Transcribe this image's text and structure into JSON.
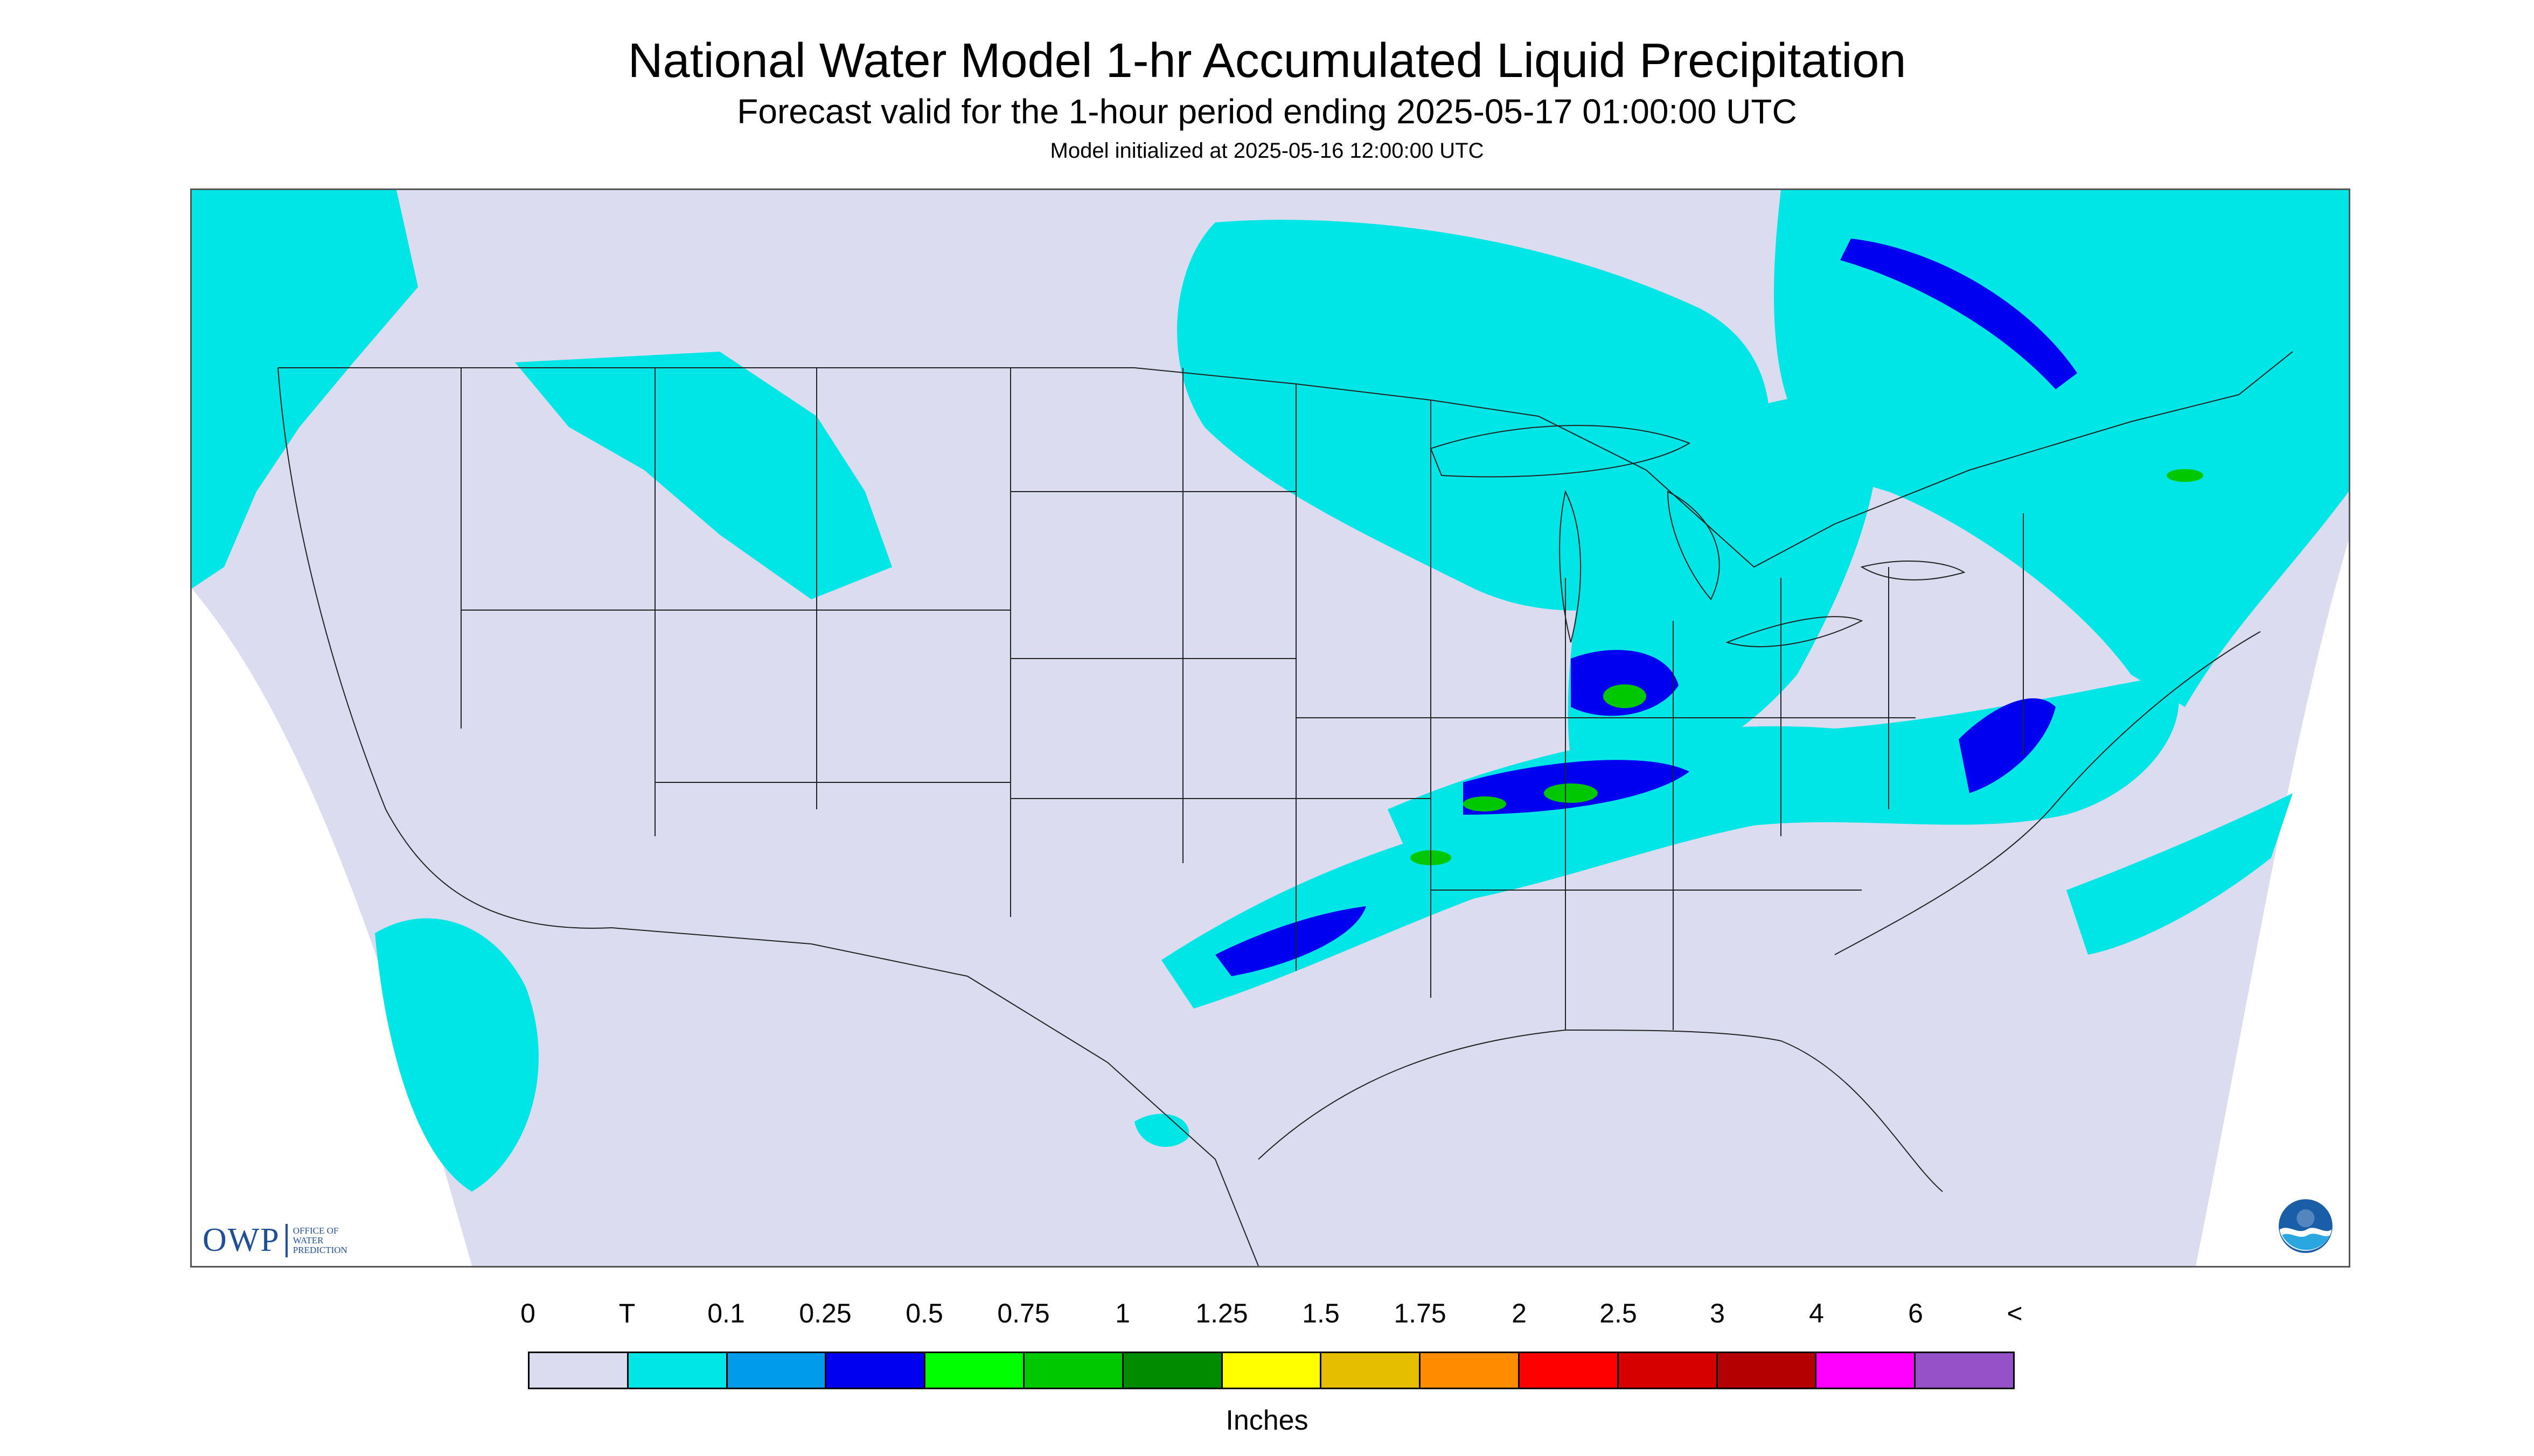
{
  "header": {
    "title": "National Water Model 1-hr Accumulated Liquid Precipitation",
    "subtitle": "Forecast valid for the 1-hour period ending 2025-05-17 01:00:00 UTC",
    "init_line": "Model initialized at 2025-05-16 12:00:00 UTC"
  },
  "map": {
    "no_data_color": "#ffffff",
    "background_color": "#dcdcf0",
    "boundary_color": "#222222",
    "precip_regions": [
      {
        "area": "Pacific Northwest coast",
        "category": "T"
      },
      {
        "area": "Northern Rockies / Montana",
        "category": "T"
      },
      {
        "area": "Upper Midwest / Great Lakes",
        "category": "T"
      },
      {
        "area": "Ontario / Quebec band",
        "category": "0.25"
      },
      {
        "area": "Michigan / Ohio Valley band",
        "category": "1"
      },
      {
        "area": "Mid-South band (Oklahoma to Kentucky)",
        "category": "1"
      },
      {
        "area": "Mid-Atlantic / Virginia",
        "category": "0.5"
      },
      {
        "area": "Southern California / Baja",
        "category": "T"
      },
      {
        "area": "Atlantic offshore",
        "category": "T"
      }
    ]
  },
  "logos": {
    "owp_abbr": "OWP",
    "owp_full": [
      "OFFICE OF",
      "WATER",
      "PREDICTION"
    ],
    "noaa_icon": "noaa-logo-icon"
  },
  "legend": {
    "labels": [
      "0",
      "T",
      "0.1",
      "0.25",
      "0.5",
      "0.75",
      "1",
      "1.25",
      "1.5",
      "1.75",
      "2",
      "2.5",
      "3",
      "4",
      "6",
      "<"
    ],
    "colors": [
      "#dcdcf0",
      "#00e5e5",
      "#009bea",
      "#0000f0",
      "#00ff00",
      "#00c800",
      "#008c00",
      "#ffff00",
      "#e6be00",
      "#ff8c00",
      "#ff0000",
      "#d70000",
      "#b40000",
      "#ff00ff",
      "#9650c8"
    ],
    "units": "Inches"
  }
}
